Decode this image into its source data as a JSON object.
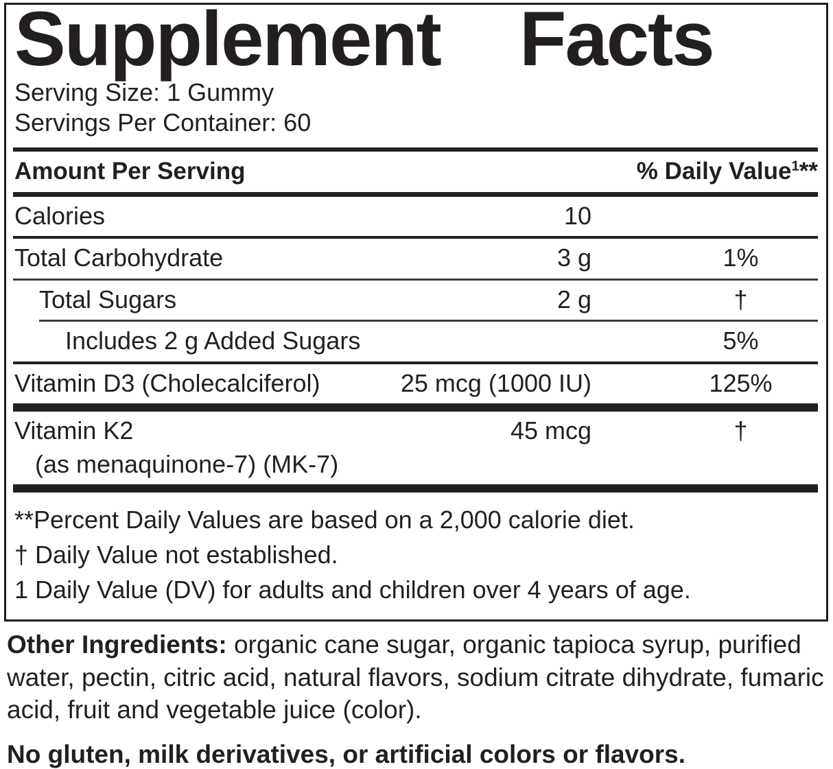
{
  "panel": {
    "title": "Supplement Facts",
    "serving_size": "Serving Size: 1 Gummy",
    "servings_per_container": "Servings Per Container: 60",
    "columns": {
      "amount_header": "Amount Per Serving",
      "dv_header": "% Daily Value",
      "dv_superscript": "1",
      "dv_asterisks": "**"
    },
    "rows": [
      {
        "name": "Calories",
        "amount": "10",
        "dv": "",
        "indent": 0,
        "divider_after": "thin-medium"
      },
      {
        "name": "Total Carbohydrate",
        "amount": "3 g",
        "dv": "1%",
        "indent": 0,
        "divider_after": "thin"
      },
      {
        "name": "Total Sugars",
        "amount": "2 g",
        "dv": "†",
        "indent": 1,
        "divider_after": "thin-indented"
      },
      {
        "name": "Includes 2 g Added Sugars",
        "amount": "",
        "dv": "5%",
        "indent": 2,
        "divider_after": "thin-medium"
      },
      {
        "name": "Vitamin D3 (Cholecalciferol)",
        "amount": "25 mcg (1000 IU)",
        "dv": "125%",
        "indent": 0,
        "divider_after": "heavy"
      },
      {
        "name": "Vitamin K2",
        "name_line2": "(as menaquinone-7) (MK-7)",
        "amount": "45 mcg",
        "dv": "†",
        "indent": 0,
        "divider_after": "heavy"
      }
    ],
    "footnotes": [
      "**Percent Daily Values are based on a 2,000 calorie diet.",
      "† Daily Value not established.",
      "1 Daily Value (DV) for adults and children over 4 years of age."
    ],
    "other_ingredients": {
      "label": "Other Ingredients:",
      "text": " organic cane sugar, organic tapioca syrup, purified water, pectin, citric acid, natural flavors, sodium citrate dihydrate, fumaric acid, fruit and vegetable juice (color)."
    },
    "allergen_statement": "No gluten, milk derivatives, or artificial colors or flavors.",
    "colors": {
      "ink": "#231f20",
      "background": "#ffffff"
    }
  }
}
